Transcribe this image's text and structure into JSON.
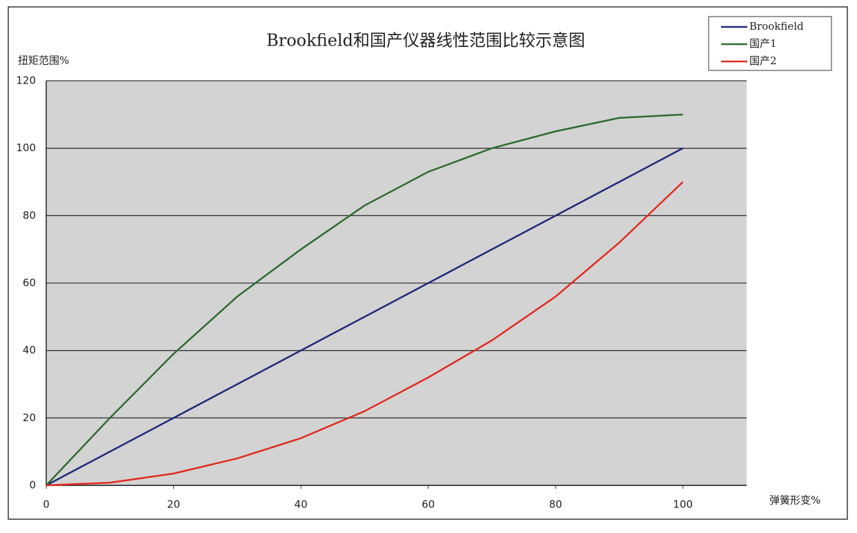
{
  "chart_data": {
    "type": "line",
    "title": "Brookfield和国产仪器线性范围比较示意图",
    "y_label": "扭矩范围%",
    "x_label": "弹簧形变%",
    "x": [
      0,
      10,
      20,
      30,
      40,
      50,
      60,
      70,
      80,
      90,
      100
    ],
    "series": [
      {
        "name": "Brookfield",
        "color": "#1f2a7a",
        "values": [
          0,
          10,
          20,
          30,
          40,
          50,
          60,
          70,
          80,
          90,
          100
        ]
      },
      {
        "name": "国产1",
        "color": "#2f6b2f",
        "values": [
          0,
          20,
          39,
          56,
          70,
          83,
          93,
          100,
          105,
          109,
          110
        ]
      },
      {
        "name": "国产2",
        "color": "#e02a1f",
        "values": [
          0,
          0.8,
          3.5,
          8,
          14,
          22,
          32,
          43,
          56,
          72,
          90
        ]
      }
    ],
    "xlim": [
      0,
      110
    ],
    "xticks": [
      0,
      20,
      40,
      60,
      80,
      100
    ],
    "ylim": [
      0,
      120
    ],
    "yticks": [
      0,
      20,
      40,
      60,
      80,
      100,
      120
    ],
    "grid": true,
    "legend": "top-right"
  }
}
